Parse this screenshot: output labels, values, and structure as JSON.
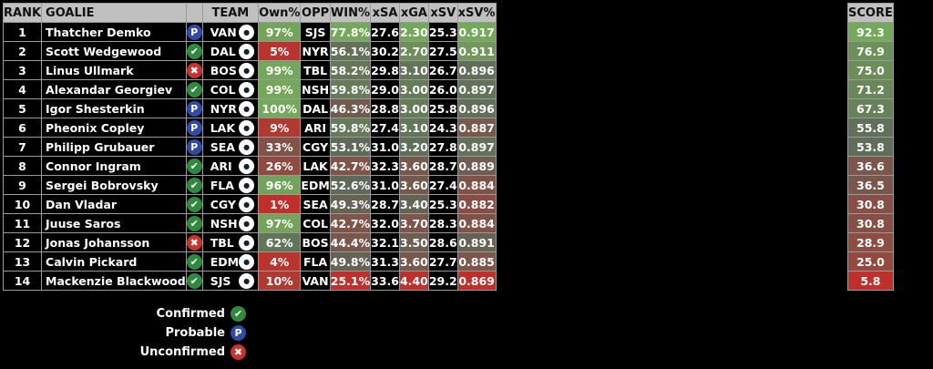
{
  "headers": {
    "rank": "RANK",
    "goalie": "GOALIE",
    "team": "TEAM",
    "own": "Own%",
    "opp": "OPP",
    "win": "WIN%",
    "xsa": "xSA",
    "xga": "xGA",
    "xsv": "xSV",
    "xsvp": "xSV%",
    "score": "SCORE"
  },
  "status_glyphs": {
    "confirmed": "✔",
    "probable": "P",
    "unconfirmed": "✖"
  },
  "colors": {
    "low": "#c0302a",
    "mid": "#5e6658",
    "high": "#74a85a",
    "confirmed": "#2e8b3e",
    "probable": "#2f4aa8",
    "unconfirmed": "#c9332c"
  },
  "rows": [
    {
      "rank": "1",
      "goalie": "Thatcher Demko",
      "status": "probable",
      "team": "VAN",
      "own": "97%",
      "opp": "SJS",
      "win": "77.8%",
      "xsa": "27.6",
      "xga": "2.30",
      "xsv": "25.3",
      "xsvp": "0.917",
      "score": "92.3"
    },
    {
      "rank": "2",
      "goalie": "Scott Wedgewood",
      "status": "confirmed",
      "team": "DAL",
      "own": "5%",
      "opp": "NYR",
      "win": "56.1%",
      "xsa": "30.2",
      "xga": "2.70",
      "xsv": "27.5",
      "xsvp": "0.911",
      "score": "76.9"
    },
    {
      "rank": "3",
      "goalie": "Linus Ullmark",
      "status": "unconfirmed",
      "team": "BOS",
      "own": "99%",
      "opp": "TBL",
      "win": "58.2%",
      "xsa": "29.8",
      "xga": "3.10",
      "xsv": "26.7",
      "xsvp": "0.896",
      "score": "75.0"
    },
    {
      "rank": "4",
      "goalie": "Alexandar Georgiev",
      "status": "confirmed",
      "team": "COL",
      "own": "99%",
      "opp": "NSH",
      "win": "59.8%",
      "xsa": "29.0",
      "xga": "3.00",
      "xsv": "26.0",
      "xsvp": "0.897",
      "score": "71.2"
    },
    {
      "rank": "5",
      "goalie": "Igor Shesterkin",
      "status": "probable",
      "team": "NYR",
      "own": "100%",
      "opp": "DAL",
      "win": "46.3%",
      "xsa": "28.8",
      "xga": "3.00",
      "xsv": "25.8",
      "xsvp": "0.896",
      "score": "67.3"
    },
    {
      "rank": "6",
      "goalie": "Pheonix Copley",
      "status": "probable",
      "team": "LAK",
      "own": "9%",
      "opp": "ARI",
      "win": "59.8%",
      "xsa": "27.4",
      "xga": "3.10",
      "xsv": "24.3",
      "xsvp": "0.887",
      "score": "55.8"
    },
    {
      "rank": "7",
      "goalie": "Philipp Grubauer",
      "status": "probable",
      "team": "SEA",
      "own": "33%",
      "opp": "CGY",
      "win": "53.1%",
      "xsa": "31.0",
      "xga": "3.20",
      "xsv": "27.8",
      "xsvp": "0.897",
      "score": "53.8"
    },
    {
      "rank": "8",
      "goalie": "Connor Ingram",
      "status": "confirmed",
      "team": "ARI",
      "own": "26%",
      "opp": "LAK",
      "win": "42.7%",
      "xsa": "32.3",
      "xga": "3.60",
      "xsv": "28.7",
      "xsvp": "0.889",
      "score": "36.6"
    },
    {
      "rank": "9",
      "goalie": "Sergei Bobrovsky",
      "status": "confirmed",
      "team": "FLA",
      "own": "96%",
      "opp": "EDM",
      "win": "52.6%",
      "xsa": "31.0",
      "xga": "3.60",
      "xsv": "27.4",
      "xsvp": "0.884",
      "score": "36.5"
    },
    {
      "rank": "10",
      "goalie": "Dan Vladar",
      "status": "confirmed",
      "team": "CGY",
      "own": "1%",
      "opp": "SEA",
      "win": "49.3%",
      "xsa": "28.7",
      "xga": "3.40",
      "xsv": "25.3",
      "xsvp": "0.882",
      "score": "30.8"
    },
    {
      "rank": "11",
      "goalie": "Juuse Saros",
      "status": "confirmed",
      "team": "NSH",
      "own": "97%",
      "opp": "COL",
      "win": "42.7%",
      "xsa": "32.0",
      "xga": "3.70",
      "xsv": "28.3",
      "xsvp": "0.884",
      "score": "30.8"
    },
    {
      "rank": "12",
      "goalie": "Jonas Johansson",
      "status": "unconfirmed",
      "team": "TBL",
      "own": "62%",
      "opp": "BOS",
      "win": "44.4%",
      "xsa": "32.1",
      "xga": "3.50",
      "xsv": "28.6",
      "xsvp": "0.891",
      "score": "28.9"
    },
    {
      "rank": "13",
      "goalie": "Calvin Pickard",
      "status": "confirmed",
      "team": "EDM",
      "own": "4%",
      "opp": "FLA",
      "win": "49.8%",
      "xsa": "31.3",
      "xga": "3.60",
      "xsv": "27.7",
      "xsvp": "0.885",
      "score": "25.0"
    },
    {
      "rank": "14",
      "goalie": "Mackenzie Blackwood",
      "status": "confirmed",
      "team": "SJS",
      "own": "10%",
      "opp": "VAN",
      "win": "25.1%",
      "xsa": "33.6",
      "xga": "4.40",
      "xsv": "29.2",
      "xsvp": "0.869",
      "score": "5.8"
    }
  ],
  "legend": [
    {
      "label": "Confirmed",
      "status": "confirmed"
    },
    {
      "label": "Probable",
      "status": "probable"
    },
    {
      "label": "Unconfirmed",
      "status": "unconfirmed"
    }
  ]
}
